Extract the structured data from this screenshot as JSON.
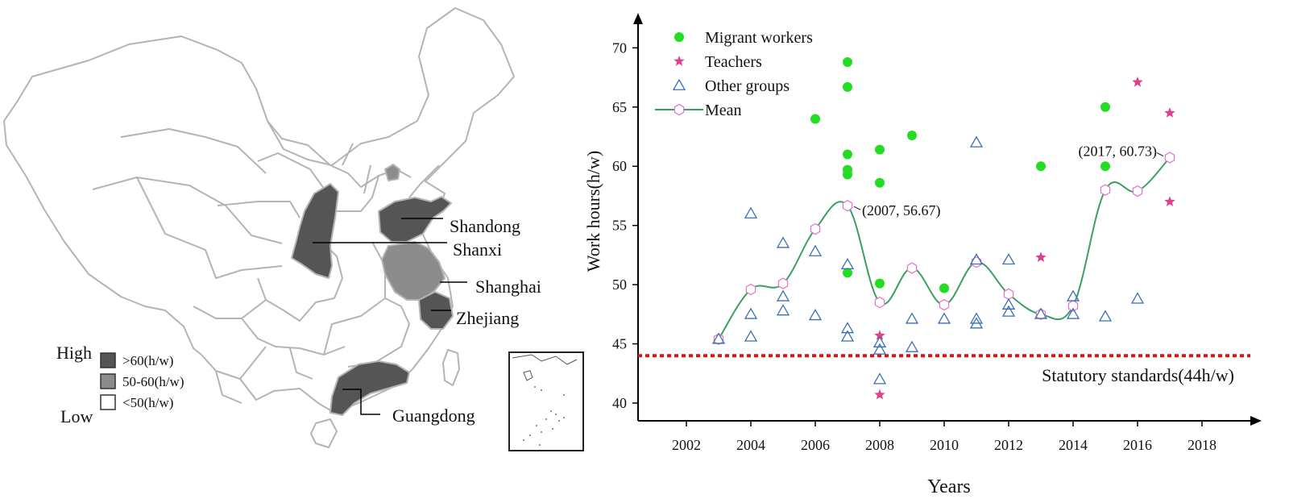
{
  "map": {
    "provinces": [
      {
        "name": "Shandong",
        "level": "high"
      },
      {
        "name": "Shanxi",
        "level": "high"
      },
      {
        "name": "Shanghai",
        "level": "mid"
      },
      {
        "name": "Zhejiang",
        "level": "high"
      },
      {
        "name": "Guangdong",
        "level": "high"
      }
    ],
    "legend": {
      "high_label": "High",
      "low_label": "Low",
      "items": [
        {
          "label": ">60(h/w)",
          "color": "#555555"
        },
        {
          "label": "50-60(h/w)",
          "color": "#8c8c8c"
        },
        {
          "label": "<50(h/w)",
          "color": "#ffffff"
        }
      ]
    },
    "colors": {
      "high": "#555555",
      "mid": "#8c8c8c",
      "border": "#b4b4b4"
    }
  },
  "chart_data": {
    "type": "scatter",
    "xlabel": "Years",
    "ylabel": "Work hours(h/w)",
    "xlim": [
      2000.5,
      2019.5
    ],
    "ylim": [
      38.5,
      72
    ],
    "xticks": [
      2002,
      2004,
      2006,
      2008,
      2010,
      2012,
      2014,
      2016,
      2018
    ],
    "yticks": [
      40,
      45,
      50,
      55,
      60,
      65,
      70
    ],
    "legend_position": "top-left",
    "series": [
      {
        "name": "Migrant workers",
        "marker": "circle",
        "color": "#22dd22",
        "points": [
          [
            2006,
            64.0
          ],
          [
            2007,
            68.8
          ],
          [
            2007,
            66.7
          ],
          [
            2007,
            61.0
          ],
          [
            2007,
            59.7
          ],
          [
            2007,
            59.3
          ],
          [
            2007,
            51.0
          ],
          [
            2008,
            61.4
          ],
          [
            2008,
            58.6
          ],
          [
            2008,
            50.1
          ],
          [
            2009,
            62.6
          ],
          [
            2010,
            49.7
          ],
          [
            2013,
            60.0
          ],
          [
            2015,
            65.0
          ],
          [
            2015,
            60.0
          ]
        ]
      },
      {
        "name": "Teachers",
        "marker": "star",
        "color": "#e0408a",
        "points": [
          [
            2008,
            45.7
          ],
          [
            2008,
            40.7
          ],
          [
            2013,
            52.3
          ],
          [
            2016,
            67.1
          ],
          [
            2017,
            64.5
          ],
          [
            2017,
            57.0
          ]
        ]
      },
      {
        "name": "Other groups",
        "marker": "triangle",
        "color": "#3a6fb5",
        "points": [
          [
            2003,
            45.4
          ],
          [
            2004,
            56.0
          ],
          [
            2004,
            47.5
          ],
          [
            2004,
            45.6
          ],
          [
            2005,
            53.5
          ],
          [
            2005,
            49.0
          ],
          [
            2005,
            47.8
          ],
          [
            2006,
            52.8
          ],
          [
            2006,
            47.4
          ],
          [
            2007,
            51.7
          ],
          [
            2007,
            46.3
          ],
          [
            2007,
            45.6
          ],
          [
            2008,
            45.1
          ],
          [
            2008,
            44.5
          ],
          [
            2008,
            42.0
          ],
          [
            2009,
            47.1
          ],
          [
            2009,
            44.7
          ],
          [
            2010,
            47.1
          ],
          [
            2011,
            62.0
          ],
          [
            2011,
            52.1
          ],
          [
            2011,
            47.1
          ],
          [
            2011,
            46.7
          ],
          [
            2012,
            52.1
          ],
          [
            2012,
            48.3
          ],
          [
            2012,
            47.7
          ],
          [
            2013,
            47.5
          ],
          [
            2014,
            49.0
          ],
          [
            2014,
            47.5
          ],
          [
            2015,
            47.3
          ],
          [
            2016,
            48.8
          ]
        ]
      },
      {
        "name": "Mean",
        "marker": "hexagon",
        "color": "#3aa060",
        "marker_color": "#e57ad1",
        "points": [
          [
            2003,
            45.4
          ],
          [
            2004,
            49.6
          ],
          [
            2005,
            50.1
          ],
          [
            2006,
            54.7
          ],
          [
            2007,
            56.67
          ],
          [
            2008,
            48.5
          ],
          [
            2009,
            51.4
          ],
          [
            2010,
            48.3
          ],
          [
            2011,
            51.9
          ],
          [
            2012,
            49.2
          ],
          [
            2013,
            47.5
          ],
          [
            2014,
            48.2
          ],
          [
            2015,
            58.0
          ],
          [
            2016,
            57.9
          ],
          [
            2017,
            60.73
          ]
        ]
      }
    ],
    "reference_line": {
      "y": 44,
      "label": "Statutory standards(44h/w)",
      "color": "#dd1111"
    },
    "annotations": [
      {
        "text": "(2007, 56.67)",
        "x": 2007,
        "y": 56.67
      },
      {
        "text": "(2017, 60.73)",
        "x": 2017,
        "y": 60.73
      }
    ]
  }
}
